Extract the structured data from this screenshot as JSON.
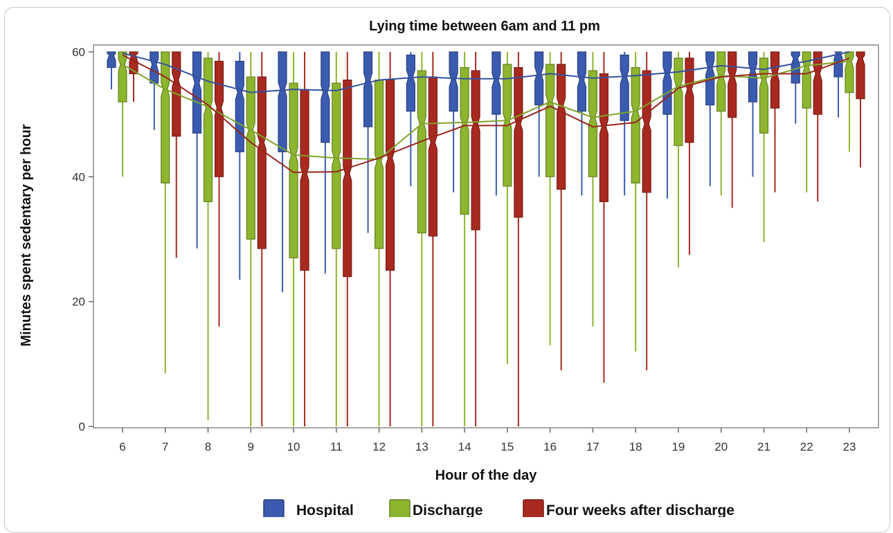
{
  "chart_data": {
    "type": "boxplot",
    "title": "Lying time between 6am and 11 pm",
    "xlabel": "Hour of the day",
    "ylabel": "Minutes spent sedentary per hour",
    "ylim": [
      0,
      62
    ],
    "yticks": [
      0,
      20,
      40,
      60
    ],
    "categories": [
      "6",
      "7",
      "8",
      "9",
      "10",
      "11",
      "12",
      "13",
      "14",
      "15",
      "16",
      "17",
      "18",
      "19",
      "20",
      "21",
      "22",
      "23"
    ],
    "legend_position": "bottom",
    "grid": false,
    "series": [
      {
        "name": "Hospital",
        "color": "#3a5bb0",
        "boxes": [
          {
            "min": 54,
            "q1": 57.5,
            "median": 59.5,
            "q3": 60,
            "max": 60
          },
          {
            "min": 47.5,
            "q1": 55,
            "median": 58,
            "q3": 60,
            "max": 60
          },
          {
            "min": 28.5,
            "q1": 47,
            "median": 55,
            "q3": 60,
            "max": 60
          },
          {
            "min": 23.5,
            "q1": 44,
            "median": 53.5,
            "q3": 58.5,
            "max": 60
          },
          {
            "min": 21.5,
            "q1": 44,
            "median": 54,
            "q3": 60,
            "max": 60
          },
          {
            "min": 24.5,
            "q1": 45.5,
            "median": 53.5,
            "q3": 60,
            "max": 60
          },
          {
            "min": 31,
            "q1": 48,
            "median": 55.5,
            "q3": 60,
            "max": 60
          },
          {
            "min": 38.5,
            "q1": 50.5,
            "median": 56,
            "q3": 59.5,
            "max": 60
          },
          {
            "min": 37.5,
            "q1": 50.5,
            "median": 55.5,
            "q3": 60,
            "max": 60
          },
          {
            "min": 37,
            "q1": 50,
            "median": 55.5,
            "q3": 60,
            "max": 60
          },
          {
            "min": 40,
            "q1": 51.5,
            "median": 56.5,
            "q3": 60,
            "max": 60
          },
          {
            "min": 37,
            "q1": 50.5,
            "median": 55.5,
            "q3": 60,
            "max": 60
          },
          {
            "min": 37,
            "q1": 49,
            "median": 56,
            "q3": 59.5,
            "max": 60
          },
          {
            "min": 36.5,
            "q1": 50,
            "median": 56.5,
            "q3": 60,
            "max": 60
          },
          {
            "min": 38.5,
            "q1": 51.5,
            "median": 57.5,
            "q3": 60,
            "max": 60
          },
          {
            "min": 40,
            "q1": 52,
            "median": 57,
            "q3": 60,
            "max": 60
          },
          {
            "min": 48.5,
            "q1": 55,
            "median": 59,
            "q3": 60,
            "max": 60
          },
          {
            "min": 49.5,
            "q1": 56,
            "median": 60,
            "q3": 60,
            "max": 60
          }
        ],
        "median_line": [
          59.8,
          58,
          55.3,
          53.5,
          54,
          53.8,
          55.5,
          56,
          55.7,
          55.7,
          56.5,
          55.8,
          56.2,
          56.8,
          57.8,
          57.2,
          58.5,
          60
        ]
      },
      {
        "name": "Discharge",
        "color": "#8db52e",
        "boxes": [
          {
            "min": 40,
            "q1": 52,
            "median": 58,
            "q3": 60,
            "max": 60
          },
          {
            "min": 8.5,
            "q1": 39,
            "median": 54,
            "q3": 60,
            "max": 60
          },
          {
            "min": 1,
            "q1": 36,
            "median": 51,
            "q3": 59,
            "max": 60
          },
          {
            "min": 0,
            "q1": 30,
            "median": 47.5,
            "q3": 56,
            "max": 60
          },
          {
            "min": 0,
            "q1": 27,
            "median": 43.5,
            "q3": 55,
            "max": 60
          },
          {
            "min": 0,
            "q1": 28.5,
            "median": 43,
            "q3": 55,
            "max": 60
          },
          {
            "min": 0,
            "q1": 28.5,
            "median": 42.5,
            "q3": 55.5,
            "max": 60
          },
          {
            "min": 0,
            "q1": 31,
            "median": 48.5,
            "q3": 57,
            "max": 60
          },
          {
            "min": 0,
            "q1": 34,
            "median": 48.5,
            "q3": 57.5,
            "max": 60
          },
          {
            "min": 10,
            "q1": 38.5,
            "median": 49,
            "q3": 58,
            "max": 60
          },
          {
            "min": 13,
            "q1": 40,
            "median": 52,
            "q3": 58,
            "max": 60
          },
          {
            "min": 16,
            "q1": 40,
            "median": 49.5,
            "q3": 57,
            "max": 60
          },
          {
            "min": 12,
            "q1": 39,
            "median": 50.5,
            "q3": 57.5,
            "max": 60
          },
          {
            "min": 25.5,
            "q1": 45,
            "median": 54.5,
            "q3": 59,
            "max": 60
          },
          {
            "min": 37,
            "q1": 50.5,
            "median": 56,
            "q3": 60,
            "max": 60
          },
          {
            "min": 29.5,
            "q1": 47,
            "median": 55.5,
            "q3": 59,
            "max": 60
          },
          {
            "min": 37.5,
            "q1": 51,
            "median": 57.5,
            "q3": 60,
            "max": 60
          },
          {
            "min": 44,
            "q1": 53.5,
            "median": 58.5,
            "q3": 60,
            "max": 60
          }
        ],
        "median_line": [
          58,
          54,
          51.2,
          47.5,
          43.5,
          43,
          42.8,
          48.5,
          48.7,
          49,
          52,
          49.5,
          50.5,
          54.5,
          56.2,
          55.8,
          57.8,
          58.5
        ]
      },
      {
        "name": "Four weeks after discharge",
        "color": "#a8291f",
        "boxes": [
          {
            "min": 52,
            "q1": 56.5,
            "median": 59.5,
            "q3": 60,
            "max": 60
          },
          {
            "min": 27,
            "q1": 46.5,
            "median": 55.5,
            "q3": 60,
            "max": 60
          },
          {
            "min": 16,
            "q1": 40,
            "median": 51,
            "q3": 58.5,
            "max": 60
          },
          {
            "min": 0,
            "q1": 28.5,
            "median": 45.5,
            "q3": 56,
            "max": 60
          },
          {
            "min": 0,
            "q1": 25,
            "median": 40.5,
            "q3": 54,
            "max": 60
          },
          {
            "min": 0,
            "q1": 24,
            "median": 40.5,
            "q3": 55.5,
            "max": 60
          },
          {
            "min": 0,
            "q1": 25,
            "median": 43,
            "q3": 55.5,
            "max": 60
          },
          {
            "min": 0,
            "q1": 30.5,
            "median": 45.5,
            "q3": 56,
            "max": 60
          },
          {
            "min": 0,
            "q1": 31.5,
            "median": 48.5,
            "q3": 57,
            "max": 60
          },
          {
            "min": 0,
            "q1": 33.5,
            "median": 48.5,
            "q3": 57.5,
            "max": 60
          },
          {
            "min": 9,
            "q1": 38,
            "median": 51.5,
            "q3": 58,
            "max": 60
          },
          {
            "min": 7,
            "q1": 36,
            "median": 48,
            "q3": 56.5,
            "max": 60
          },
          {
            "min": 9,
            "q1": 37.5,
            "median": 48.5,
            "q3": 57,
            "max": 60
          },
          {
            "min": 27.5,
            "q1": 45.5,
            "median": 54,
            "q3": 59,
            "max": 60
          },
          {
            "min": 35,
            "q1": 49.5,
            "median": 56,
            "q3": 60,
            "max": 60
          },
          {
            "min": 37.5,
            "q1": 51,
            "median": 56.5,
            "q3": 60,
            "max": 60
          },
          {
            "min": 36,
            "q1": 50,
            "median": 56.5,
            "q3": 60,
            "max": 60
          },
          {
            "min": 41.5,
            "q1": 52.5,
            "median": 59,
            "q3": 60,
            "max": 60
          }
        ],
        "median_line": [
          59.5,
          56,
          51.5,
          45.5,
          40.7,
          40.8,
          43,
          45.7,
          48.2,
          48.2,
          51.3,
          48,
          48.7,
          54.2,
          56,
          56.5,
          56.5,
          59
        ]
      }
    ]
  }
}
